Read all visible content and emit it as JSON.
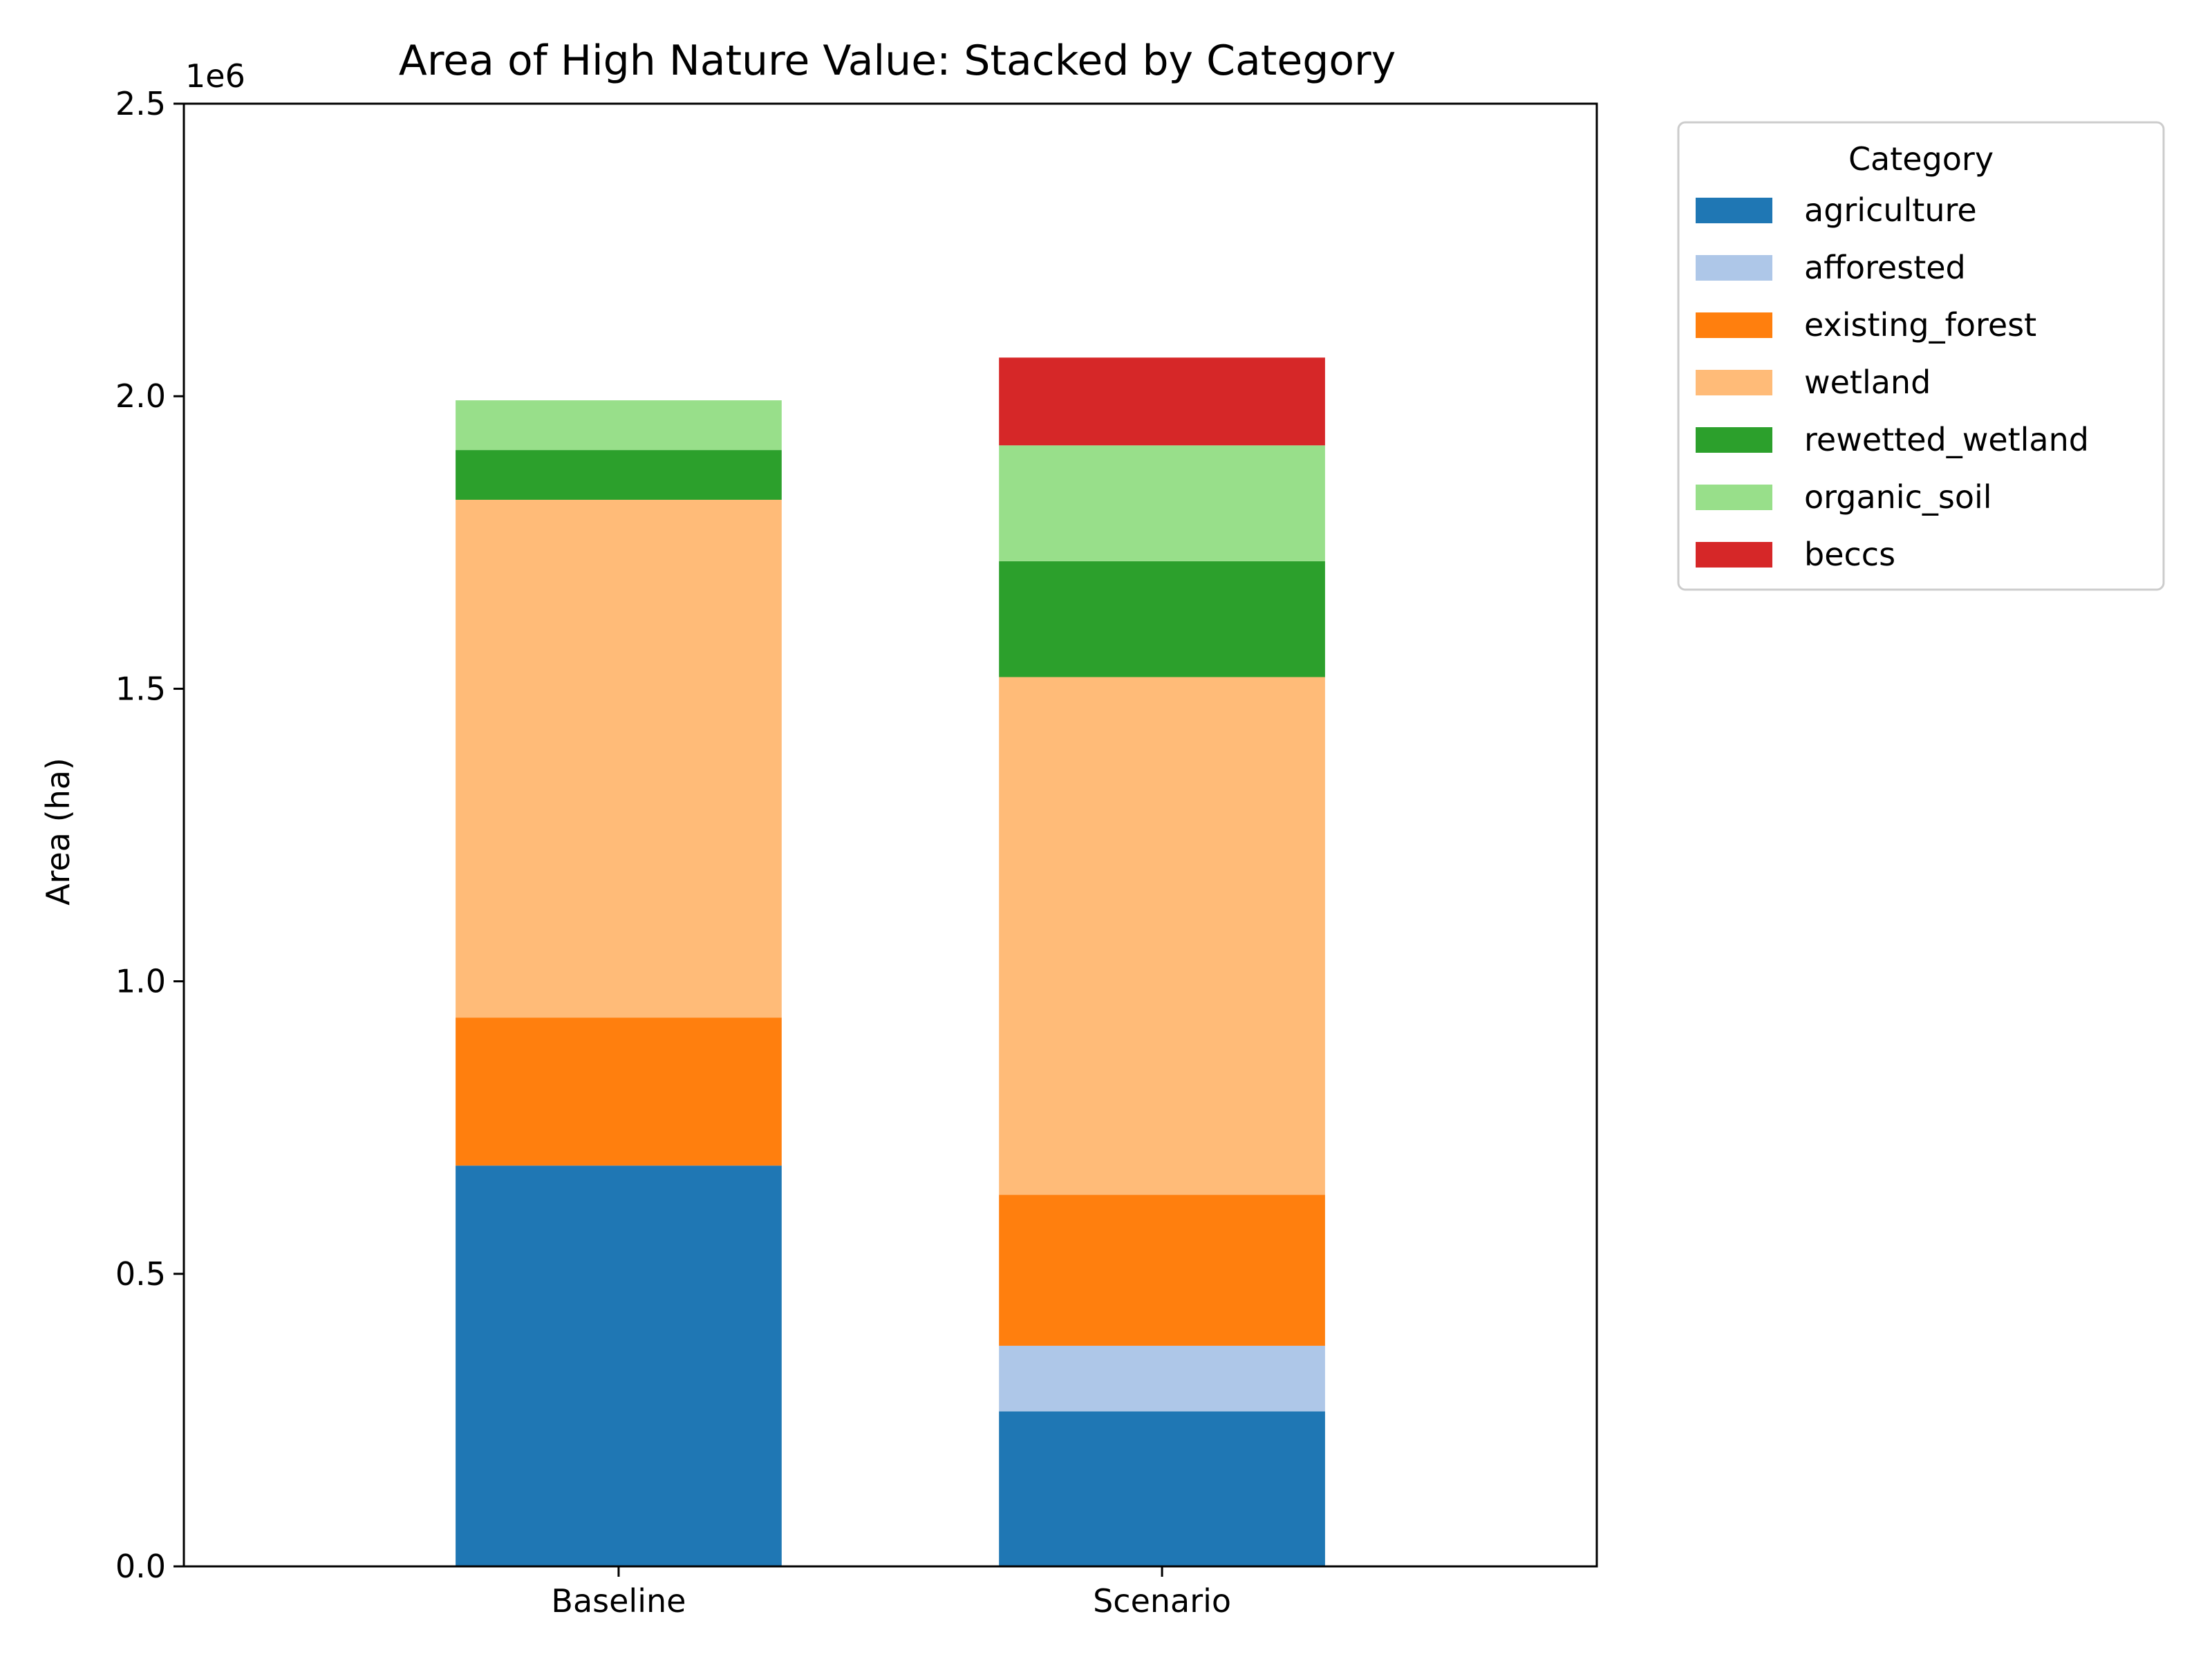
{
  "chart_data": {
    "type": "bar",
    "stacked": true,
    "title": "Area of High Nature Value: Stacked by Category",
    "xlabel": "",
    "ylabel": "Area (ha)",
    "y_scale_label": "1e6",
    "ylim": [
      0,
      2500000
    ],
    "y_ticks": [
      0,
      500000,
      1000000,
      1500000,
      2000000,
      2500000
    ],
    "y_tick_labels": [
      "0.0",
      "0.5",
      "1.0",
      "1.5",
      "2.0",
      "2.5"
    ],
    "categories": [
      "Baseline",
      "Scenario"
    ],
    "legend": {
      "title": "Category",
      "placement": "outside-upper-right"
    },
    "grid": false,
    "series": [
      {
        "name": "agriculture",
        "color": "#1f77b4",
        "values": [
          685000,
          265000
        ]
      },
      {
        "name": "afforested",
        "color": "#aec7e8",
        "values": [
          0,
          112000
        ]
      },
      {
        "name": "existing_forest",
        "color": "#ff7f0e",
        "values": [
          253000,
          258000
        ]
      },
      {
        "name": "wetland",
        "color": "#ffbb78",
        "values": [
          885000,
          885000
        ]
      },
      {
        "name": "rewetted_wetland",
        "color": "#2ca02c",
        "values": [
          85000,
          198000
        ]
      },
      {
        "name": "organic_soil",
        "color": "#98df8a",
        "values": [
          85000,
          198000
        ]
      },
      {
        "name": "beccs",
        "color": "#d62728",
        "values": [
          0,
          150000
        ]
      }
    ]
  }
}
